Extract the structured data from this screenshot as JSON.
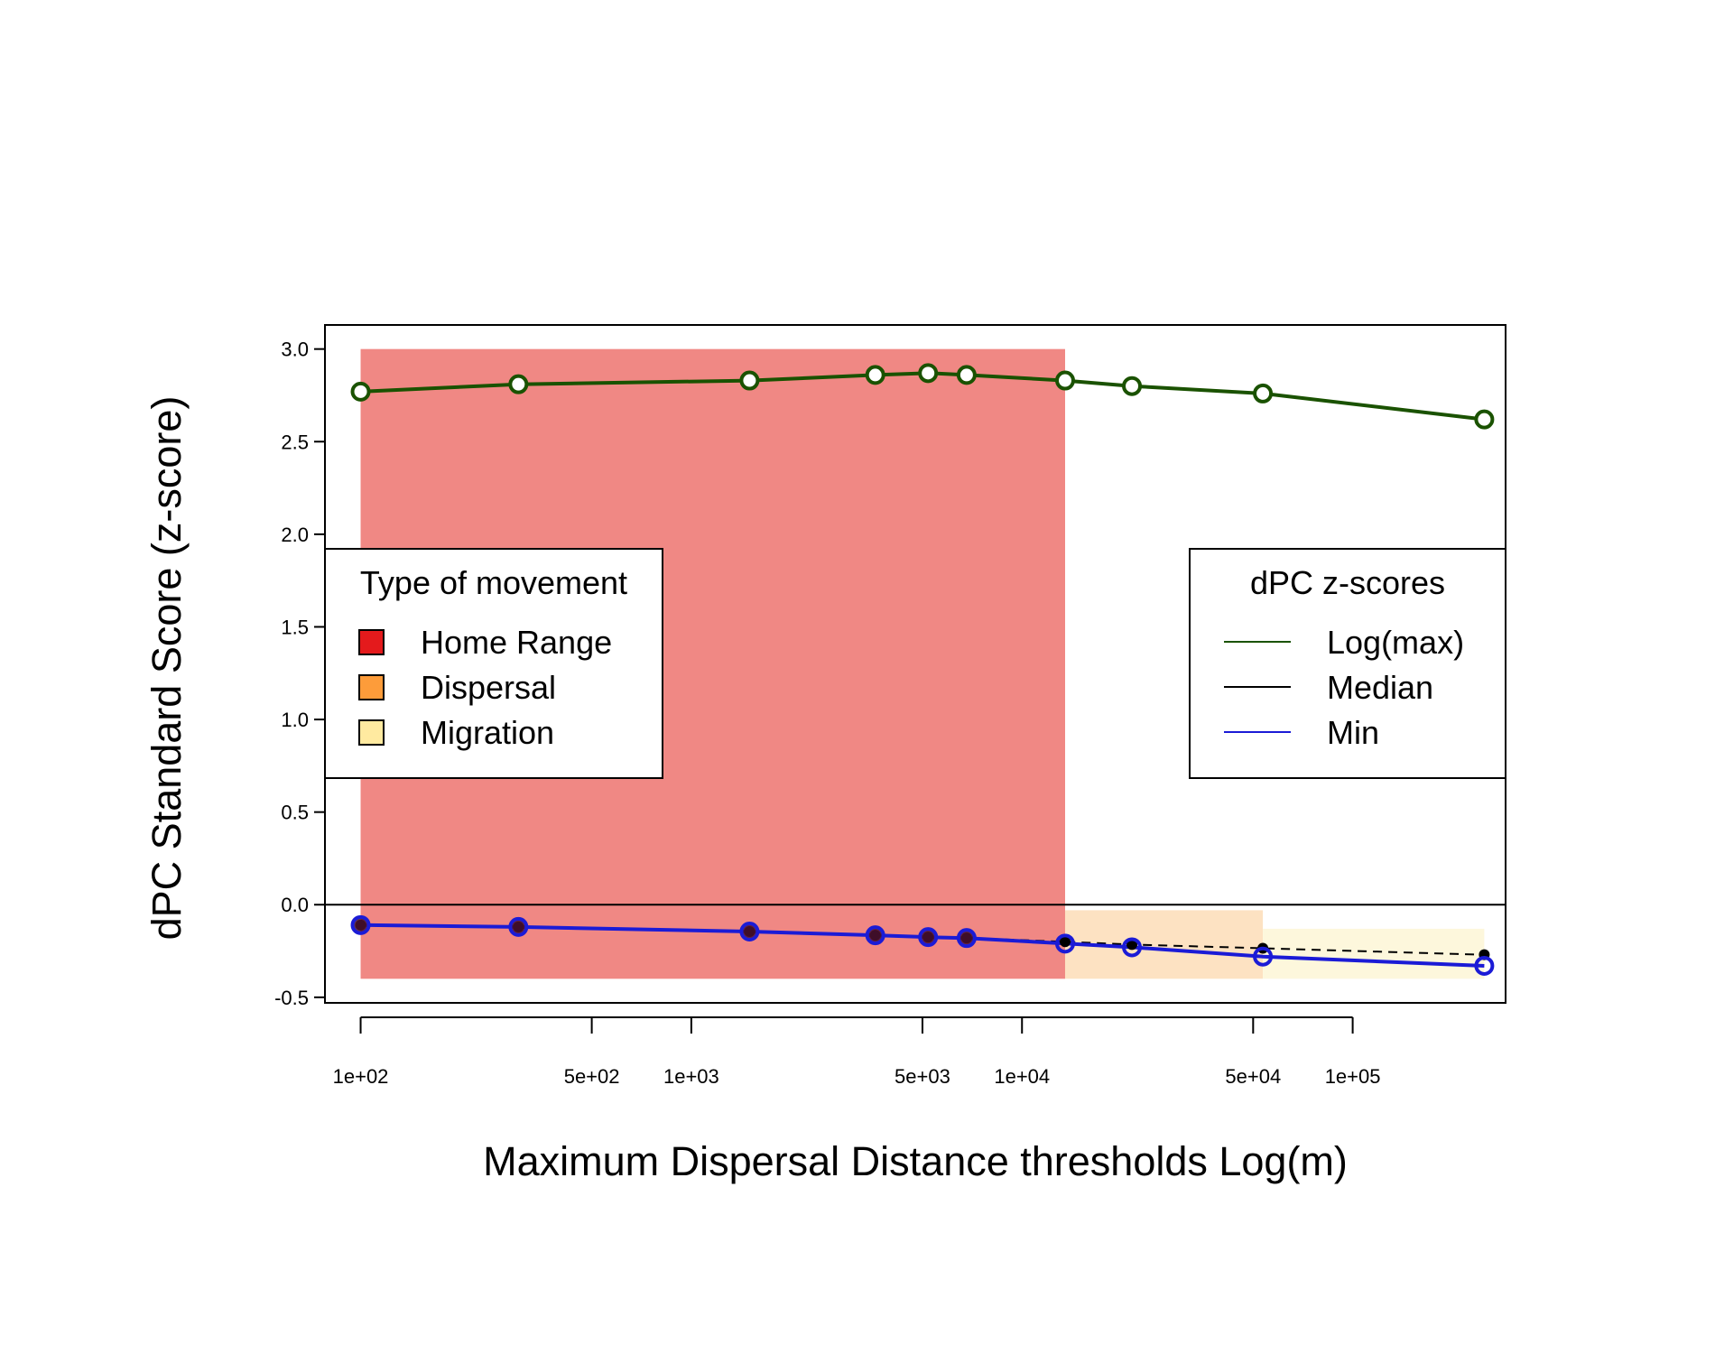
{
  "chart_data": {
    "type": "line",
    "xlabel": "Maximum Dispersal Distance thresholds Log(m)",
    "ylabel": "dPC Standard Score (z-score)",
    "x_scale": "log10",
    "xlim": [
      78,
      290000
    ],
    "ylim": [
      -0.53,
      3.13
    ],
    "x_ticks": [
      {
        "value": 100,
        "label": "1e+02"
      },
      {
        "value": 500,
        "label": "5e+02"
      },
      {
        "value": 1000,
        "label": "1e+03"
      },
      {
        "value": 5000,
        "label": "5e+03"
      },
      {
        "value": 10000,
        "label": "1e+04"
      },
      {
        "value": 50000,
        "label": "5e+04"
      },
      {
        "value": 100000,
        "label": "1e+05"
      }
    ],
    "y_ticks": [
      {
        "value": 3.0,
        "label": "3.0"
      },
      {
        "value": 2.5,
        "label": "2.5"
      },
      {
        "value": 2.0,
        "label": "2.0"
      },
      {
        "value": 1.5,
        "label": "1.5"
      },
      {
        "value": 1.0,
        "label": "1.0"
      },
      {
        "value": 0.5,
        "label": "0.5"
      },
      {
        "value": 0.0,
        "label": "0.0"
      },
      {
        "value": -0.5,
        "label": "-0.5"
      }
    ],
    "x": [
      100,
      300,
      1500,
      3600,
      5200,
      6800,
      13500,
      21500,
      53500,
      250000
    ],
    "series": [
      {
        "name": "Log(max)",
        "color": "#1a5200",
        "values": [
          2.77,
          2.81,
          2.83,
          2.86,
          2.87,
          2.86,
          2.83,
          2.8,
          2.76,
          2.62
        ]
      },
      {
        "name": "Median",
        "color": "#000000",
        "values": [
          -0.11,
          -0.12,
          -0.145,
          -0.165,
          -0.175,
          -0.18,
          -0.2,
          -0.215,
          -0.235,
          -0.27
        ]
      },
      {
        "name": "Min",
        "color": "#1b1bd6",
        "values": [
          -0.11,
          -0.12,
          -0.145,
          -0.165,
          -0.175,
          -0.18,
          -0.21,
          -0.23,
          -0.28,
          -0.33
        ]
      }
    ],
    "movement_bands": [
      {
        "name": "Home Range",
        "x_range": [
          100,
          13500
        ],
        "y_range": [
          -0.4,
          3.0
        ],
        "color": "#f08884",
        "swatch": "#e41a1c"
      },
      {
        "name": "Dispersal",
        "x_range": [
          13500,
          53500
        ],
        "y_range": [
          -0.4,
          -0.03
        ],
        "color": "#fde2c2",
        "swatch": "#fd9c3a"
      },
      {
        "name": "Migration",
        "x_range": [
          53500,
          250000
        ],
        "y_range": [
          -0.4,
          -0.13
        ],
        "color": "#fdf7dc",
        "swatch": "#ffeaa0"
      }
    ],
    "legend_movement": {
      "title": "Type of movement",
      "position": "left"
    },
    "legend_scores": {
      "title": "dPC z-scores",
      "position": "right"
    },
    "zero_line": true,
    "grid": false
  }
}
